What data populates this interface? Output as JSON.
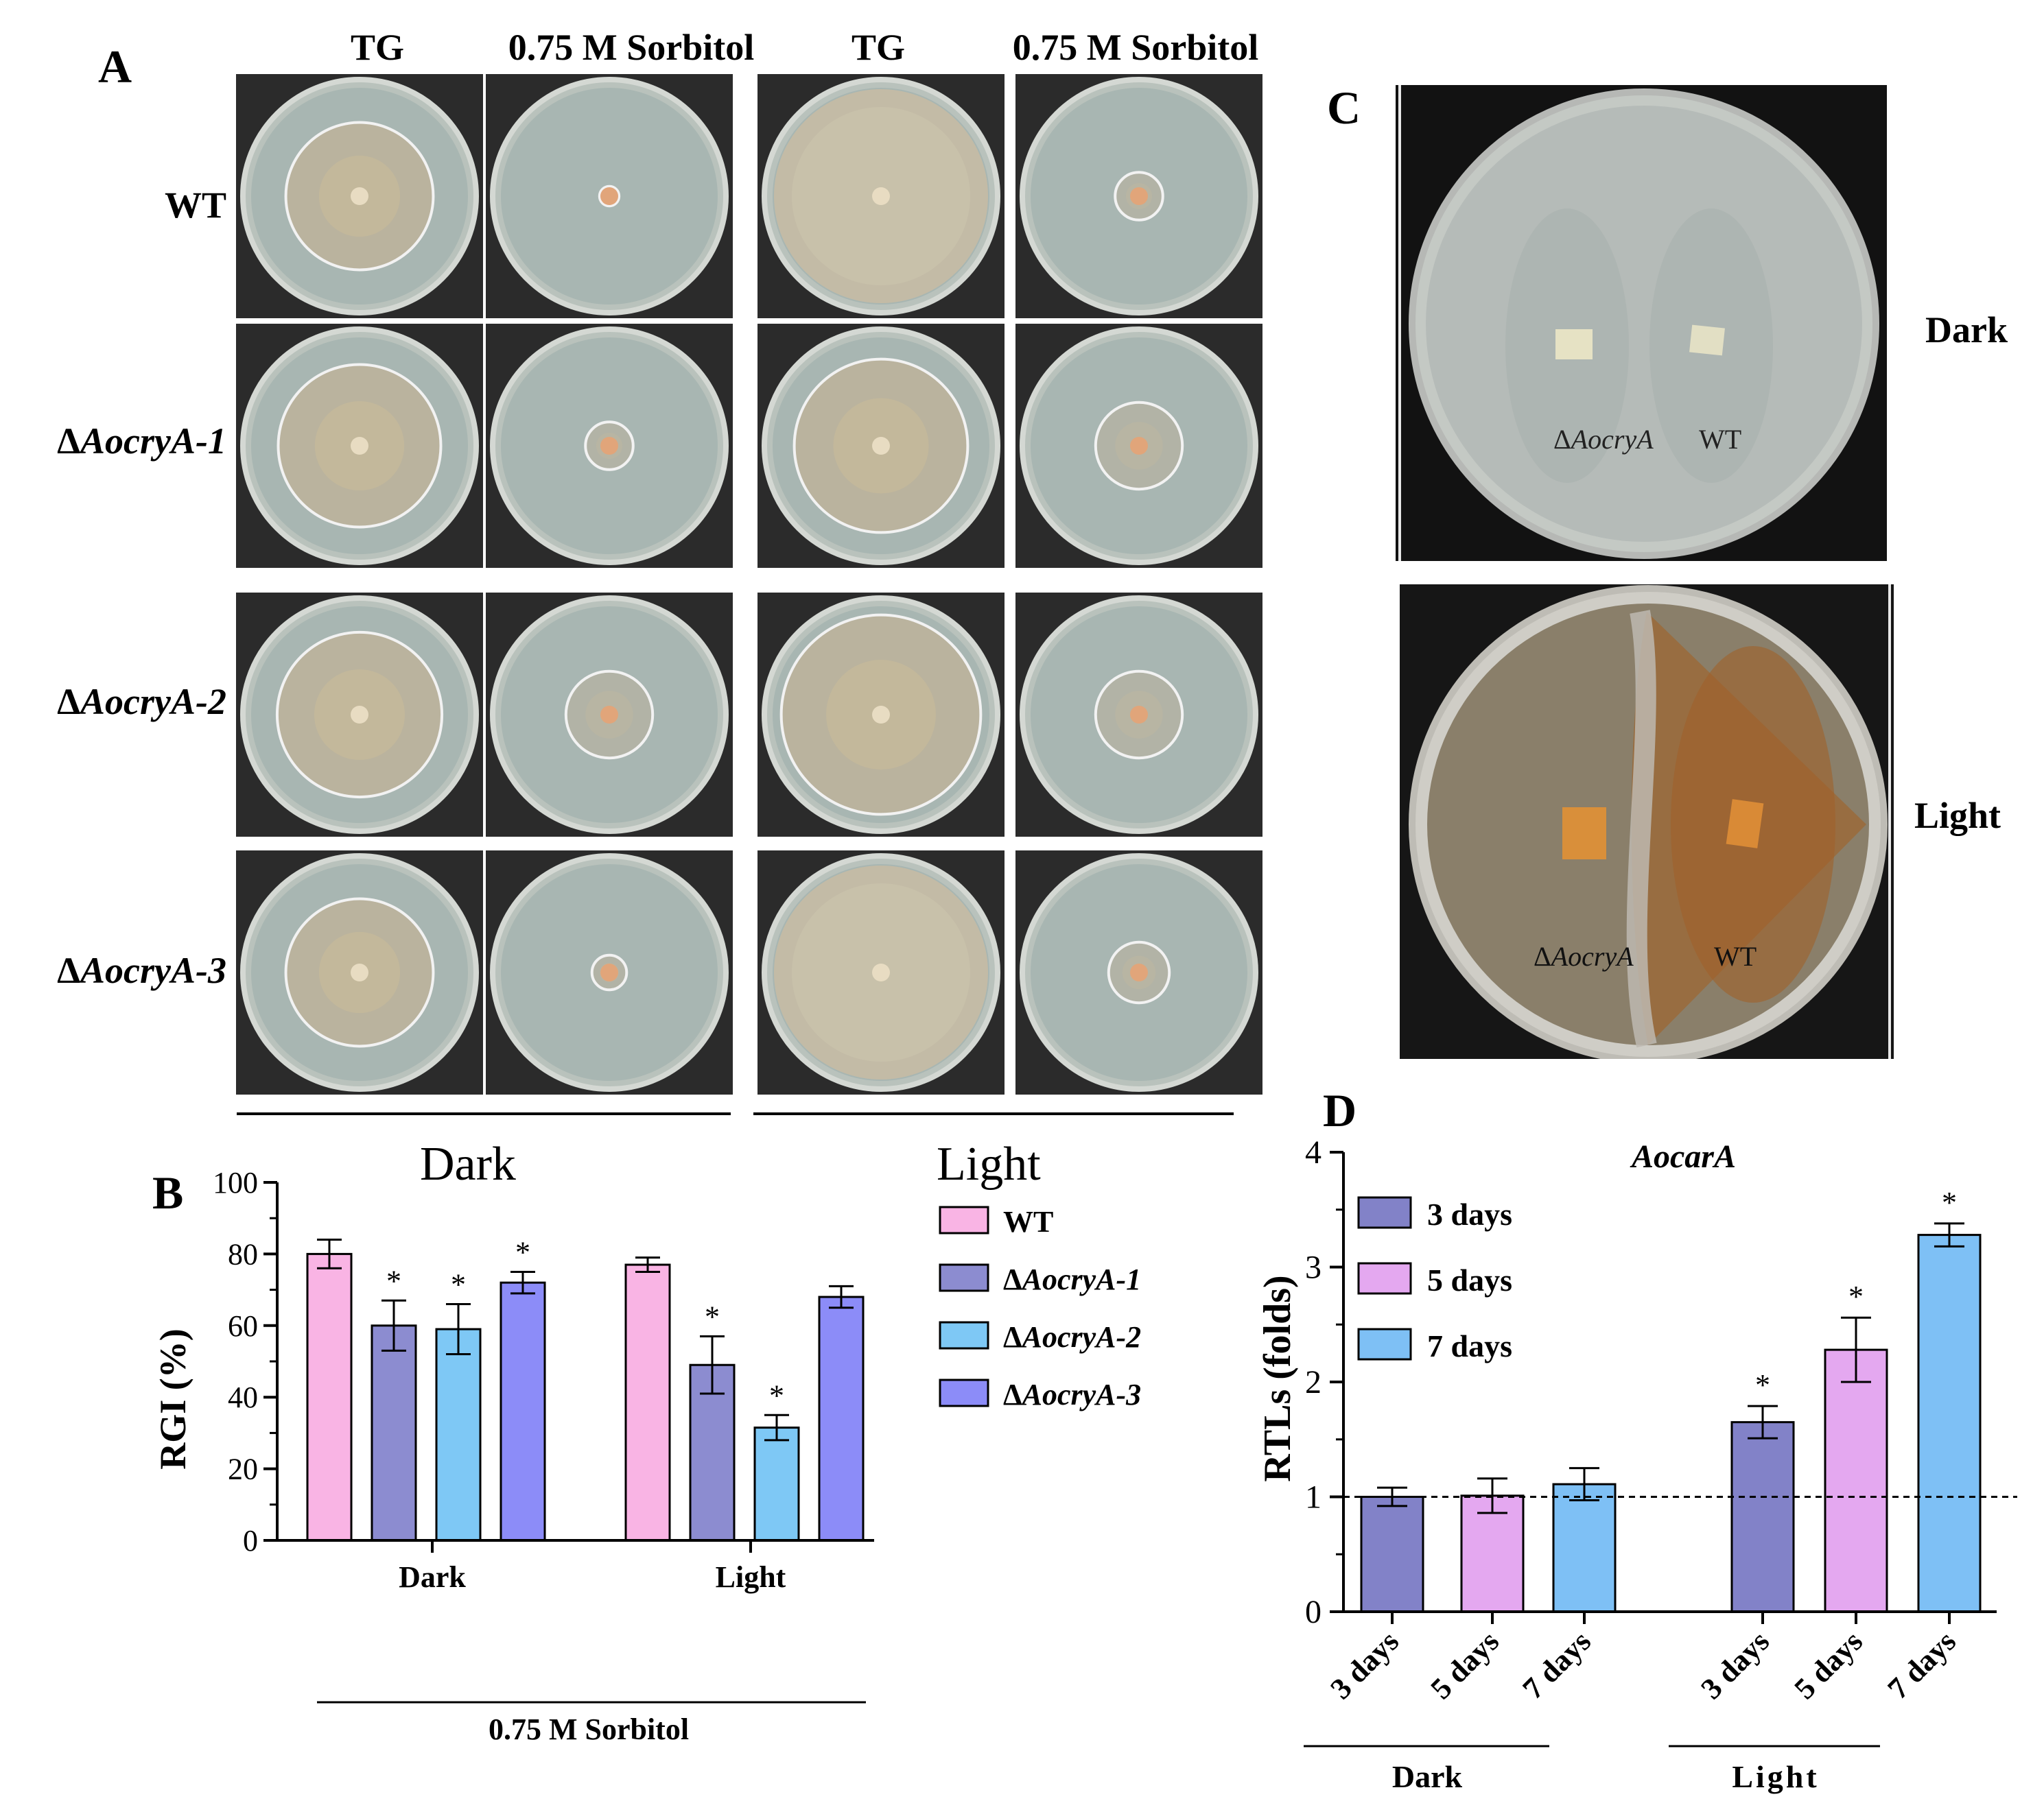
{
  "panel_labels": {
    "a": "A",
    "b": "B",
    "c": "C",
    "d": "D"
  },
  "panel_a": {
    "column_headers": [
      "TG",
      "0.75 M Sorbitol",
      "TG",
      "0.75 M Sorbitol"
    ],
    "row_prefix": "Δ",
    "rows": [
      {
        "label": "WT",
        "italic": ""
      },
      {
        "label": "",
        "italic": "AocryA-1"
      },
      {
        "label": "",
        "italic": "AocryA-2"
      },
      {
        "label": "",
        "italic": "AocryA-3"
      }
    ],
    "condition_labels": [
      "Dark",
      "Light"
    ]
  },
  "panel_c": {
    "side_labels": [
      "Dark",
      "Light"
    ],
    "plate_label_mutant_prefix": "Δ",
    "plate_label_mutant": "AocryA",
    "plate_label_wt": "WT"
  },
  "chart_data": [
    {
      "type": "bar",
      "ylabel": "RGI (%)",
      "ylim": [
        0,
        100
      ],
      "yticks": [
        0,
        20,
        40,
        60,
        80,
        100
      ],
      "categories": [
        "Dark",
        "Light"
      ],
      "group_label": "0.75 M Sorbitol",
      "legend_position": "right",
      "series": [
        {
          "name": "WT",
          "values": [
            80,
            77
          ],
          "errors": [
            4,
            2
          ],
          "sig": [
            false,
            false
          ],
          "color": "#F9B4E4"
        },
        {
          "name": "ΔAocryA-1",
          "values": [
            60,
            49
          ],
          "errors": [
            7,
            8
          ],
          "sig": [
            true,
            true
          ],
          "color": "#8C8CD0"
        },
        {
          "name": "ΔAocryA-2",
          "values": [
            59,
            31.5
          ],
          "errors": [
            7,
            3.5
          ],
          "sig": [
            true,
            true
          ],
          "color": "#7EC8F5"
        },
        {
          "name": "ΔAocryA-3",
          "values": [
            72,
            68
          ],
          "errors": [
            3,
            3
          ],
          "sig": [
            true,
            false
          ],
          "color": "#8C8CF8"
        }
      ],
      "sig_marker": "*"
    },
    {
      "type": "bar",
      "title": "AocarA",
      "ylabel": "RTLs (folds)",
      "ylim": [
        0,
        4
      ],
      "yticks": [
        0,
        1,
        2,
        3,
        4
      ],
      "categories": [
        "3 days",
        "5 days",
        "7 days",
        "3 days",
        "5 days",
        "7 days"
      ],
      "groups": [
        "Dark",
        "Light"
      ],
      "reference_line": 1,
      "legend_position": "top-left",
      "series": [
        {
          "name": "3 days",
          "color": "#8282C8"
        },
        {
          "name": "5 days",
          "color": "#E4A8F0"
        },
        {
          "name": "7 days",
          "color": "#7EC0F5"
        }
      ],
      "values": [
        1.0,
        1.01,
        1.11,
        1.65,
        2.28,
        3.28
      ],
      "errors": [
        0.08,
        0.15,
        0.14,
        0.14,
        0.28,
        0.1
      ],
      "sig": [
        false,
        false,
        false,
        true,
        true,
        true
      ],
      "sig_marker": "*"
    }
  ]
}
